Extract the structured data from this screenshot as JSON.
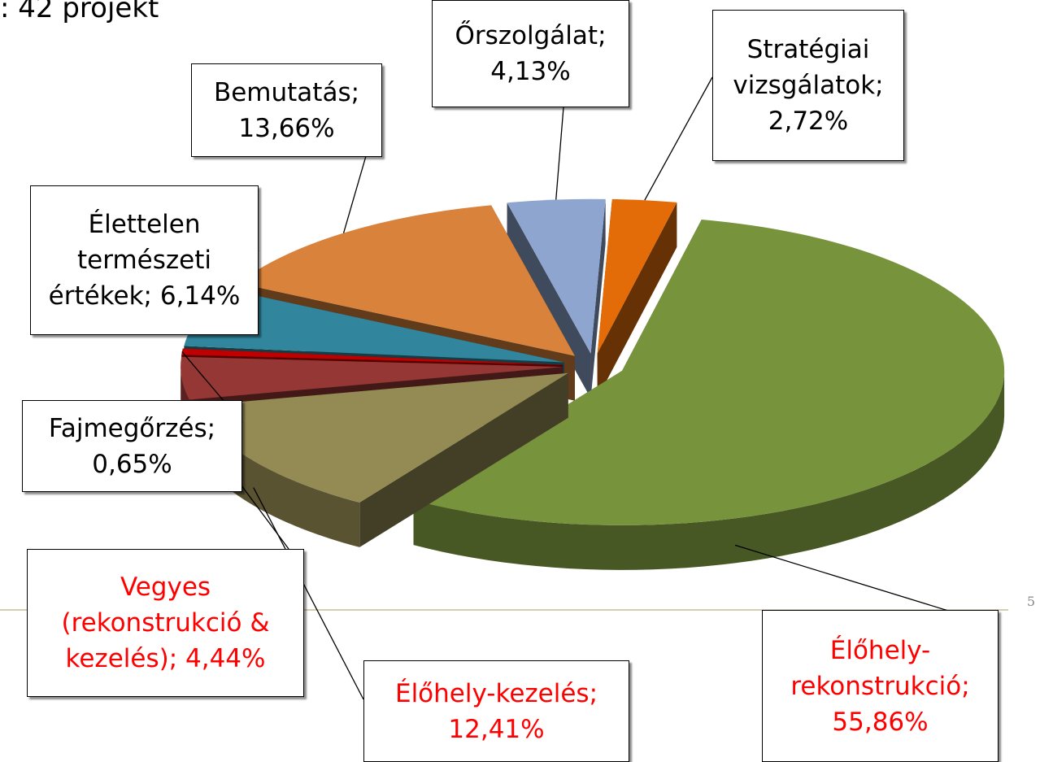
{
  "chart_data": {
    "type": "pie3d",
    "title": ": 42 projekt",
    "page_number": "5",
    "values": [
      55.86,
      12.41,
      4.44,
      0.65,
      6.14,
      13.66,
      4.13,
      2.72
    ],
    "value_labels": [
      "Élőhely-rekonstrukció; 55,86%",
      "Élőhely-kezelés; 12,41%",
      "Vegyes (rekonstrukció & kezelés); 4,44%",
      "Fajmegőrzés; 0,65%",
      "Élettelen természeti értékek; 6,14%",
      "Bemutatás; 13,66%",
      "Őrszolgálat; 4,13%",
      "Stratégiai vizsgálatok; 2,72%"
    ],
    "colors": [
      "#77933c",
      "#948a54",
      "#953735",
      "#c00000",
      "#31859c",
      "#d9823b",
      "#8ea5cf",
      "#e36c09"
    ],
    "label_colors": [
      "#ff0000",
      "#ff0000",
      "#ff0000",
      "#000000",
      "#000000",
      "#000000",
      "#000000",
      "#000000"
    ]
  }
}
